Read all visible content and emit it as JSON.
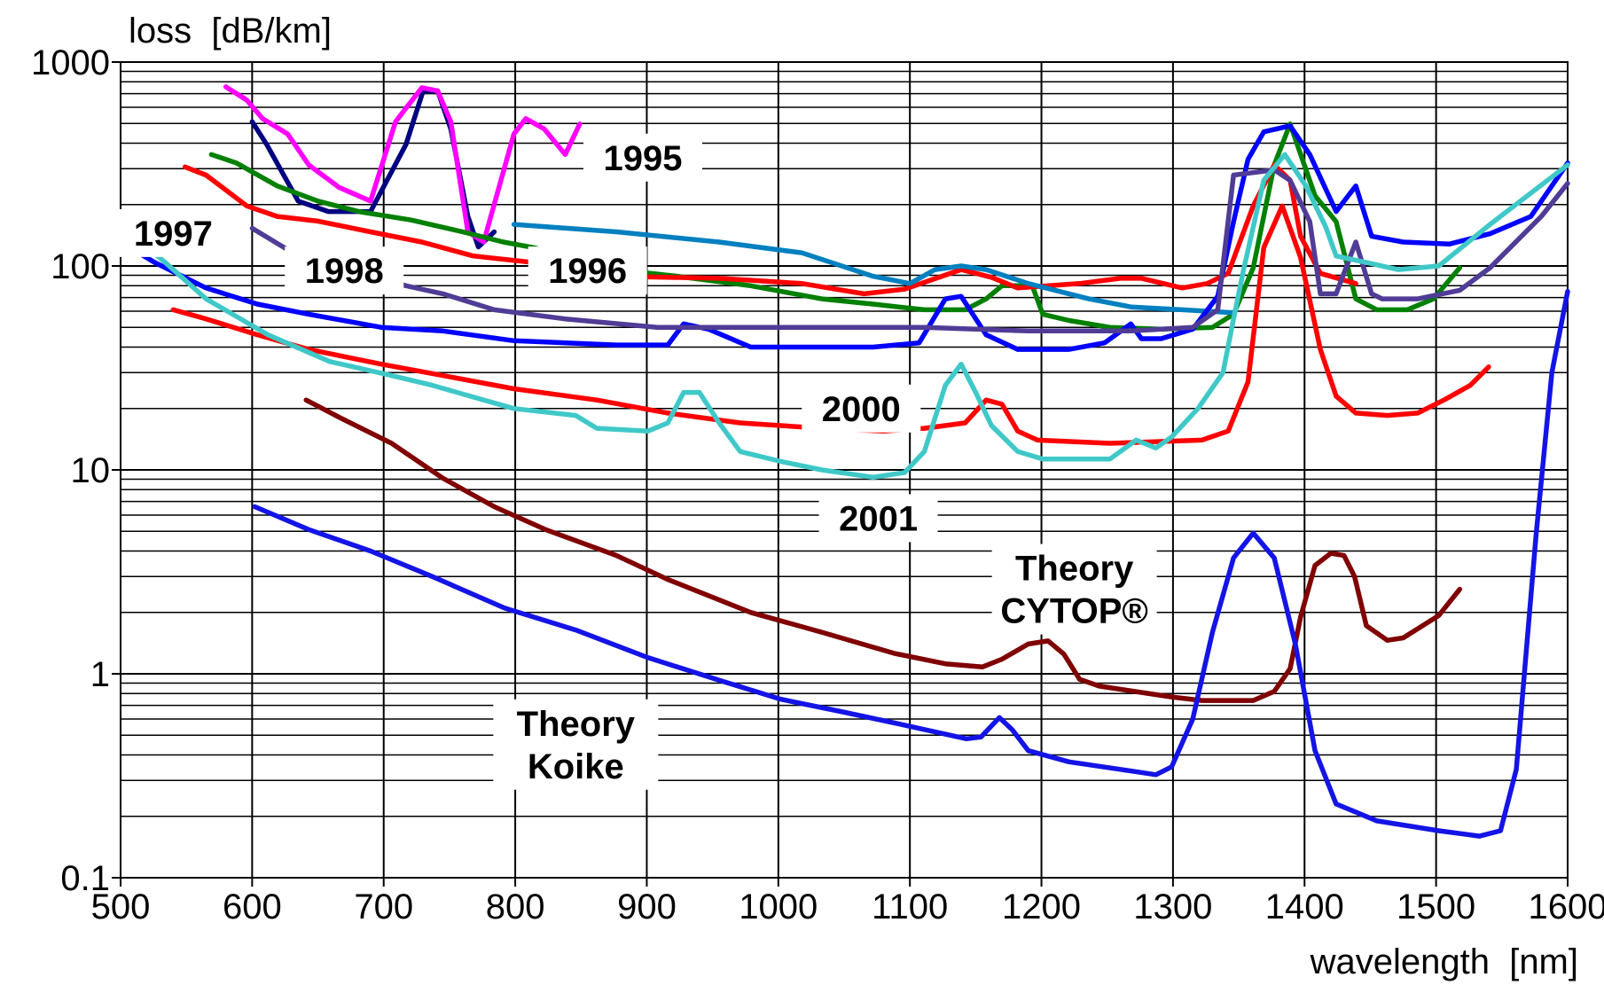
{
  "chart_data": {
    "type": "line",
    "y_label": "loss  [dB/km]",
    "x_label": "wavelength  [nm]",
    "log_y": true,
    "grid": true,
    "minor_grid": true,
    "xlim": [
      500,
      1600
    ],
    "ylim": [
      0.1,
      1000
    ],
    "xticks": [
      500,
      600,
      700,
      800,
      900,
      1000,
      1100,
      1200,
      1300,
      1400,
      1500,
      1600
    ],
    "yticks": [
      0.1,
      1,
      10,
      100,
      1000
    ],
    "series": [
      {
        "color": "#000080",
        "x": [
          600,
          611,
          635,
          658,
          690,
          717,
          730,
          741,
          751,
          764,
          772,
          784
        ],
        "values": [
          510,
          395,
          208,
          185,
          185,
          395,
          722,
          722,
          470,
          175,
          124,
          147
        ]
      },
      {
        "name": "1995",
        "color": "#ff00ff",
        "label_x": 897,
        "label_y": 340,
        "x": [
          580,
          596,
          608,
          627,
          643,
          666,
          690,
          709,
          729,
          741,
          751,
          764,
          776,
          799,
          808,
          822,
          838,
          849
        ],
        "values": [
          756,
          650,
          528,
          444,
          313,
          243,
          208,
          510,
          749,
          722,
          510,
          147,
          131,
          444,
          528,
          470,
          352,
          497
        ]
      },
      {
        "name": "1996",
        "color": "#008000",
        "label_x": 855,
        "label_y": 95,
        "x": [
          569,
          588,
          619,
          650,
          681,
          721,
          760,
          791,
          814,
          877,
          923,
          979,
          1033,
          1072,
          1111,
          1142,
          1158,
          1170,
          1193,
          1201,
          1221,
          1252,
          1291,
          1330,
          1346,
          1361,
          1377,
          1389,
          1408,
          1424,
          1439,
          1455,
          1478,
          1498,
          1518
        ],
        "values": [
          352,
          320,
          247,
          208,
          185,
          168,
          147,
          131,
          123,
          96,
          89,
          80,
          69,
          65,
          61,
          61,
          69,
          80,
          80,
          58,
          54,
          50,
          49,
          50,
          58,
          98,
          313,
          497,
          221,
          165,
          69,
          61,
          61,
          69,
          98
        ]
      },
      {
        "color": "#ff0000",
        "x": [
          549,
          565,
          596,
          619,
          650,
          690,
          729,
          768,
          814,
          877,
          955,
          1018,
          1065,
          1096,
          1139,
          1162,
          1182,
          1229,
          1260,
          1276,
          1307,
          1326,
          1342,
          1361,
          1377,
          1389,
          1397,
          1412,
          1439
        ],
        "values": [
          306,
          279,
          197,
          175,
          166,
          147,
          131,
          112,
          104,
          89,
          87,
          82,
          73,
          77,
          96,
          88,
          78,
          82,
          87,
          87,
          78,
          82,
          92,
          197,
          313,
          263,
          140,
          92,
          82
        ]
      },
      {
        "color": "#0080c0",
        "x": [
          799,
          877,
          955,
          1018,
          1072,
          1100,
          1119,
          1139,
          1158,
          1190,
          1236,
          1268,
          1307,
          1346
        ],
        "values": [
          160,
          147,
          131,
          116,
          89,
          82,
          96,
          100,
          96,
          82,
          69,
          63,
          61,
          59
        ]
      },
      {
        "name": "1997",
        "color": "#0000ff",
        "label_x": 540,
        "label_y": 145,
        "x": [
          500,
          526,
          565,
          604,
          643,
          698,
          745,
          799,
          877,
          916,
          928,
          947,
          979,
          1033,
          1072,
          1107,
          1127,
          1139,
          1158,
          1182,
          1221,
          1248,
          1268,
          1276,
          1291,
          1315,
          1334,
          1346,
          1357,
          1369,
          1389,
          1404,
          1424,
          1439,
          1451,
          1475,
          1510,
          1541,
          1572,
          1600
        ],
        "values": [
          131,
          104,
          78,
          65,
          58,
          50,
          48,
          43,
          41,
          41,
          52,
          49,
          40,
          40,
          40,
          42,
          69,
          71,
          46,
          39,
          39,
          42,
          52,
          44,
          44,
          49,
          71,
          165,
          333,
          455,
          487,
          352,
          185,
          247,
          140,
          131,
          128,
          144,
          175,
          320
        ]
      },
      {
        "name": "1998",
        "color": "#503c96",
        "label_x": 670,
        "label_y": 95,
        "x": [
          600,
          631,
          717,
          745,
          784,
          838,
          908,
          955,
          1033,
          1111,
          1190,
          1268,
          1315,
          1334,
          1346,
          1377,
          1389,
          1404,
          1412,
          1424,
          1439,
          1451,
          1459,
          1486,
          1518,
          1541,
          1580,
          1600
        ],
        "values": [
          153,
          116,
          80,
          73,
          61,
          55,
          50,
          50,
          50,
          50,
          48,
          48,
          50,
          61,
          279,
          296,
          263,
          165,
          73,
          73,
          131,
          73,
          69,
          69,
          76,
          98,
          175,
          254
        ]
      },
      {
        "name": "2000",
        "color": "#ff0000",
        "label_x": 1063,
        "label_y": 20,
        "x": [
          540,
          565,
          604,
          643,
          698,
          745,
          799,
          862,
          916,
          971,
          1033,
          1080,
          1111,
          1142,
          1158,
          1170,
          1182,
          1197,
          1252,
          1322,
          1342,
          1357,
          1369,
          1383,
          1397,
          1412,
          1424,
          1439,
          1463,
          1486,
          1506,
          1526,
          1540
        ],
        "values": [
          61,
          55,
          46,
          39,
          33,
          29,
          25,
          22,
          19,
          17,
          16,
          15.5,
          16,
          17,
          22,
          21,
          15.5,
          14,
          13.5,
          14,
          15.5,
          27,
          123,
          197,
          110,
          39,
          23,
          19,
          18.5,
          19,
          22,
          26,
          32
        ]
      },
      {
        "name": "2001",
        "color": "#40c8c8",
        "label_x": 1076,
        "label_y": 5.8,
        "x": [
          500,
          534,
          565,
          612,
          659,
          706,
          737,
          776,
          799,
          846,
          862,
          901,
          916,
          928,
          940,
          955,
          971,
          1002,
          1033,
          1072,
          1096,
          1111,
          1127,
          1139,
          1150,
          1162,
          1182,
          1201,
          1252,
          1272,
          1287,
          1299,
          1319,
          1338,
          1346,
          1354,
          1369,
          1385,
          1401,
          1416,
          1424,
          1447,
          1471,
          1502,
          1541,
          1600
        ],
        "values": [
          160,
          104,
          69,
          46,
          34,
          29,
          26,
          22,
          20,
          18.5,
          16,
          15.5,
          17,
          24,
          24,
          17,
          12.3,
          11,
          10,
          9.2,
          9.7,
          12.3,
          26,
          33,
          24,
          16.5,
          12.3,
          11.3,
          11.3,
          14,
          12.8,
          14.5,
          20,
          30,
          55,
          98,
          263,
          352,
          247,
          156,
          112,
          104,
          96,
          100,
          160,
          313
        ]
      },
      {
        "name": "Theory CYTOP®",
        "color": "#800000",
        "label_x": 1225,
        "label_y": 2.6,
        "x": [
          641,
          667,
          706,
          745,
          784,
          823,
          877,
          916,
          979,
          1033,
          1088,
          1127,
          1155,
          1170,
          1190,
          1205,
          1217,
          1229,
          1244,
          1299,
          1322,
          1361,
          1377,
          1389,
          1397,
          1408,
          1420,
          1430,
          1438,
          1447,
          1463,
          1475,
          1502,
          1518
        ],
        "values": [
          22,
          18,
          13.5,
          9.1,
          6.6,
          5.1,
          3.8,
          2.9,
          2.0,
          1.6,
          1.26,
          1.12,
          1.08,
          1.18,
          1.4,
          1.45,
          1.25,
          0.94,
          0.87,
          0.77,
          0.74,
          0.74,
          0.82,
          1.06,
          1.9,
          3.4,
          3.9,
          3.8,
          3.0,
          1.72,
          1.46,
          1.5,
          1.93,
          2.6
        ]
      },
      {
        "name": "Theory Koike",
        "color": "#1414e6",
        "label_x": 846,
        "label_y": 0.45,
        "x": [
          602,
          643,
          690,
          737,
          792,
          846,
          901,
          955,
          1002,
          1049,
          1096,
          1143,
          1154,
          1168,
          1178,
          1190,
          1221,
          1260,
          1287,
          1299,
          1315,
          1330,
          1346,
          1361,
          1377,
          1393,
          1408,
          1424,
          1455,
          1502,
          1533,
          1549,
          1561,
          1576,
          1588,
          1600
        ],
        "values": [
          6.6,
          5.1,
          4.0,
          3.0,
          2.1,
          1.64,
          1.2,
          0.93,
          0.75,
          0.65,
          0.56,
          0.48,
          0.49,
          0.61,
          0.53,
          0.42,
          0.37,
          0.34,
          0.32,
          0.35,
          0.6,
          1.6,
          3.7,
          4.9,
          3.7,
          1.4,
          0.42,
          0.23,
          0.19,
          0.17,
          0.16,
          0.17,
          0.34,
          4.8,
          30,
          75
        ]
      }
    ]
  }
}
